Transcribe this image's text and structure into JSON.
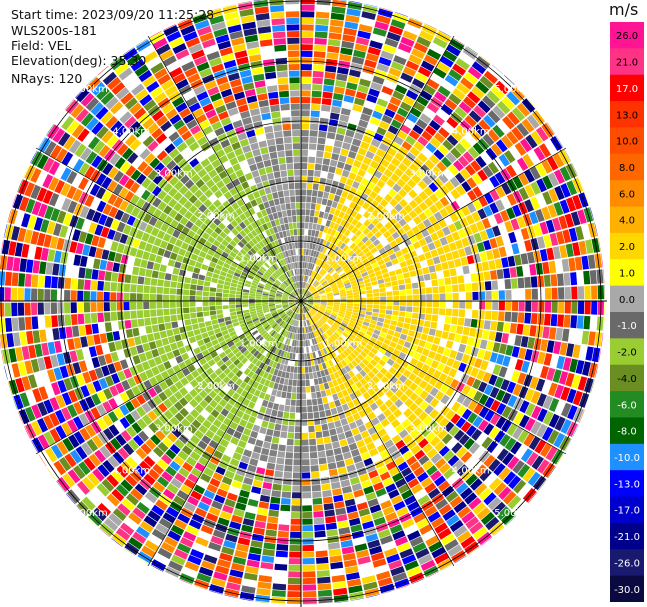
{
  "header": {
    "start_time": "Start time: 2023/09/20 11:25:28",
    "instrument": "WLS200s-181",
    "field": "Field: VEL",
    "elevation": "Elevation(deg): 35.30",
    "nrays": "NRays: 120"
  },
  "colorbar": {
    "unit": "m/s",
    "ticks": [
      "26.0",
      "21.0",
      "17.0",
      "13.0",
      "10.0",
      "8.0",
      "6.0",
      "4.0",
      "2.0",
      "1.0",
      "0.0",
      "-1.0",
      "-2.0",
      "-4.0",
      "-6.0",
      "-8.0",
      "-10.0",
      "-13.0",
      "-17.0",
      "-21.0",
      "-26.0",
      "-30.0"
    ],
    "colors": [
      "#ff1493",
      "#ff3385",
      "#ff0000",
      "#ff3300",
      "#ff4d00",
      "#ff6600",
      "#ff8c00",
      "#ffb000",
      "#ffd700",
      "#ffff00",
      "#a9a9a9",
      "#696969",
      "#9acd32",
      "#6b8e23",
      "#228b22",
      "#006400",
      "#1e90ff",
      "#0000ff",
      "#0000cd",
      "#00008b",
      "#191970",
      "#0a0a40"
    ]
  },
  "chart_data": {
    "type": "heatmap",
    "projection": "polar PPI",
    "field": "VEL",
    "nrays": 120,
    "range_rings_km": [
      1.0,
      2.0,
      3.0,
      4.0,
      5.0
    ],
    "ring_labels": [
      "1.00km",
      "2.00km",
      "3.00km",
      "4.00km",
      "5.00km"
    ],
    "max_range_km": 5.0,
    "units": "m/s",
    "vmin": -30.0,
    "vmax": 26.0,
    "pattern": "positive (yellow, ~+1 to +2 m/s) on east side within ~3 km, negative (green, ~-1 to -2 m/s) on west side within ~3 km, near-zero grey along north-south, noisy random values beyond ~3.2 km"
  }
}
